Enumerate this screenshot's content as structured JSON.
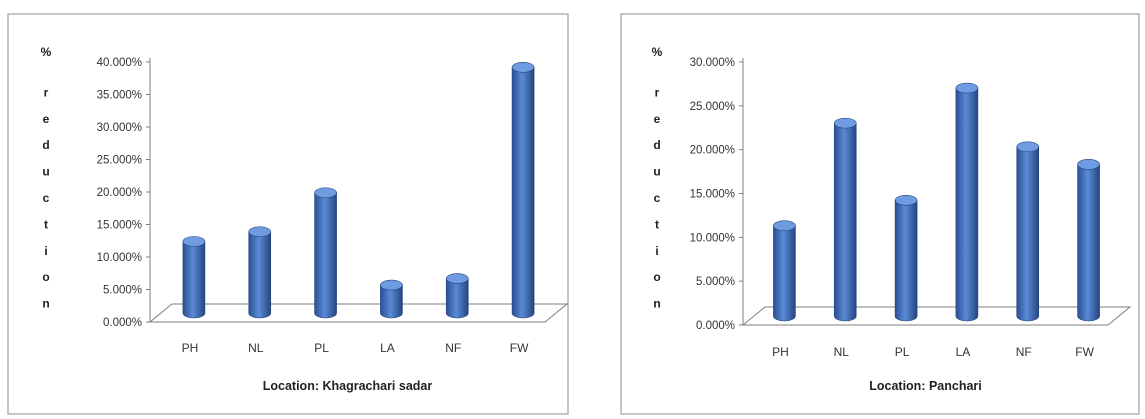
{
  "chart_data": [
    {
      "type": "bar",
      "title": "",
      "xlabel": "Location: Khagrachari sadar",
      "ylabel": "% reduction",
      "ylabel_glyphs": [
        "%",
        "r",
        "e",
        "d",
        "u",
        "c",
        "t",
        "i",
        "o",
        "n"
      ],
      "categories": [
        "PH",
        "NL",
        "PL",
        "LA",
        "NF",
        "FW"
      ],
      "values": [
        11.0,
        12.5,
        18.5,
        4.3,
        5.3,
        37.8
      ],
      "yticks": [
        "0.000%",
        "5.000%",
        "10.000%",
        "15.000%",
        "20.000%",
        "25.000%",
        "30.000%",
        "35.000%",
        "40.000%"
      ],
      "ylim": [
        0,
        40
      ],
      "grid": false,
      "legend": "none",
      "bar_color": "#3f6fbf"
    },
    {
      "type": "bar",
      "title": "",
      "xlabel": "Location: Panchari",
      "ylabel": "% reduction",
      "ylabel_glyphs": [
        "%",
        "r",
        "e",
        "d",
        "u",
        "c",
        "t",
        "i",
        "o",
        "n"
      ],
      "categories": [
        "PH",
        "NL",
        "PL",
        "LA",
        "NF",
        "FW"
      ],
      "values": [
        10.3,
        22.0,
        13.2,
        26.0,
        19.3,
        17.3
      ],
      "yticks": [
        "0.000%",
        "5.000%",
        "10.000%",
        "15.000%",
        "20.000%",
        "25.000%",
        "30.000%"
      ],
      "ylim": [
        0,
        30
      ],
      "grid": false,
      "legend": "none",
      "bar_color": "#3f6fbf"
    }
  ]
}
